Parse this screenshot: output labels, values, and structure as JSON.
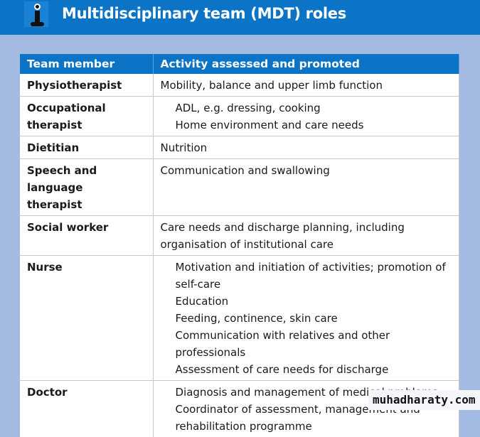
{
  "header": {
    "title": "Multidisciplinary team (MDT) roles",
    "icon": "info-icon"
  },
  "table": {
    "columns": [
      "Team member",
      "Activity assessed and promoted"
    ],
    "rows": [
      {
        "member": "Physiotherapist",
        "lines": [
          "Mobility, balance and upper limb function"
        ],
        "indented": false
      },
      {
        "member": "Occupational therapist",
        "lines": [
          "ADL, e.g. dressing, cooking",
          "Home environment and care needs"
        ],
        "indented": true
      },
      {
        "member": "Dietitian",
        "lines": [
          "Nutrition"
        ],
        "indented": false
      },
      {
        "member": "Speech and language therapist",
        "lines": [
          "Communication and swallowing"
        ],
        "indented": false
      },
      {
        "member": "Social worker",
        "lines": [
          "Care needs and discharge planning, including organisation of institutional care"
        ],
        "indented": false
      },
      {
        "member": "Nurse",
        "lines": [
          "Motivation and initiation of activities; promotion of self-care",
          "Education",
          "Feeding, continence, skin care",
          "Communication with relatives and other professionals",
          "Assessment of care needs for discharge"
        ],
        "indented": true
      },
      {
        "member": "Doctor",
        "lines": [
          "Diagnosis and management of medical problems",
          "Coordinator of assessment, management and rehabilitation programme"
        ],
        "indented": true
      }
    ]
  },
  "watermark": "muhadharaty.com"
}
